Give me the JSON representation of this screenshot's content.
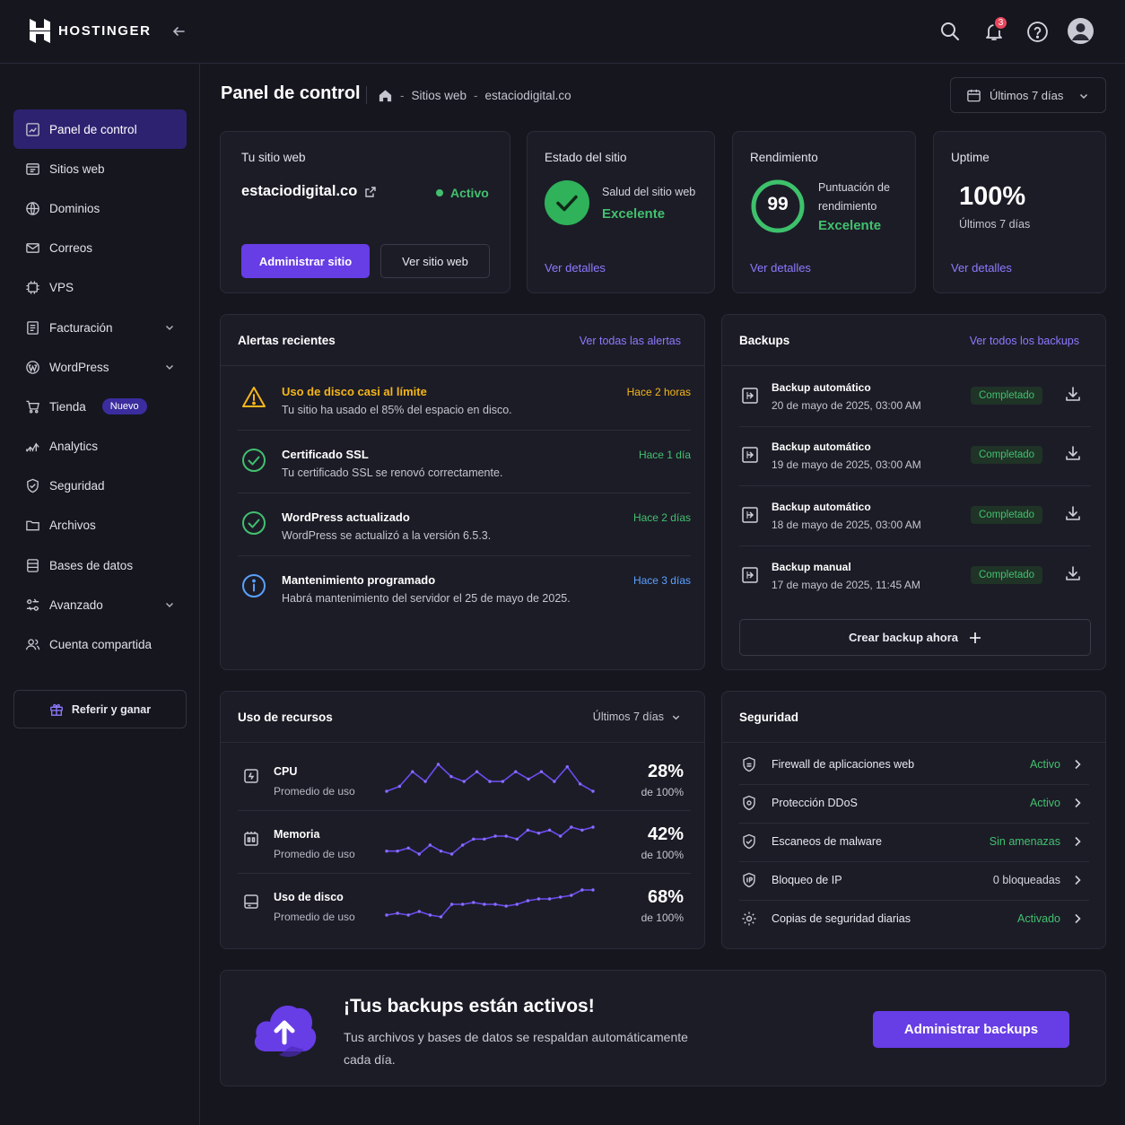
{
  "brand": {
    "name": "HOSTINGER"
  },
  "header": {
    "notification_count": "3"
  },
  "sidebar": {
    "items": [
      {
        "label": "Panel de control"
      },
      {
        "label": "Sitios web"
      },
      {
        "label": "Dominios"
      },
      {
        "label": "Correos"
      },
      {
        "label": "VPS"
      },
      {
        "label": "Facturación"
      },
      {
        "label": "WordPress"
      },
      {
        "label": "Tienda",
        "badge": "Nuevo"
      },
      {
        "label": "Analytics"
      },
      {
        "label": "Seguridad"
      },
      {
        "label": "Archivos"
      },
      {
        "label": "Bases de datos"
      },
      {
        "label": "Avanzado"
      },
      {
        "label": "Cuenta compartida"
      }
    ],
    "refer_label": "Referir y ganar"
  },
  "page": {
    "title": "Panel de control",
    "breadcrumb": [
      "Sitios web",
      "estaciodigital.co"
    ],
    "date_range": "Últimos 7 días"
  },
  "site_card": {
    "label": "Tu sitio web",
    "domain": "estaciodigital.co",
    "status": "Activo",
    "manage_label": "Administrar sitio",
    "view_label": "Ver sitio web"
  },
  "status_card": {
    "label": "Estado del sitio",
    "health_label": "Salud del sitio web",
    "health_value": "Excelente",
    "details": "Ver detalles"
  },
  "performance_card": {
    "label": "Rendimiento",
    "score": "99",
    "score_fraction": 0.99,
    "score_label_1": "Puntuación de",
    "score_label_2": "rendimiento",
    "score_value": "Excelente",
    "details": "Ver detalles"
  },
  "uptime_card": {
    "label": "Uptime",
    "value": "100%",
    "period": "Últimos 7 días",
    "details": "Ver detalles"
  },
  "alerts": {
    "title": "Alertas recientes",
    "link": "Ver todas las alertas",
    "items": [
      {
        "title": "Uso de disco casi al límite",
        "desc": "Tu sitio ha usado el 85% del espacio en disco.",
        "time": "Hace 2 horas",
        "kind": "warning"
      },
      {
        "title": "Certificado SSL",
        "desc": "Tu certificado SSL se renovó correctamente.",
        "time": "Hace 1 día",
        "kind": "success"
      },
      {
        "title": "WordPress actualizado",
        "desc": "WordPress se actualizó a la versión 6.5.3.",
        "time": "Hace 2 días",
        "kind": "success"
      },
      {
        "title": "Mantenimiento programado",
        "desc": "Habrá mantenimiento del servidor el 25 de mayo de 2025.",
        "time": "Hace 3 días",
        "kind": "info"
      }
    ]
  },
  "backups": {
    "title": "Backups",
    "link": "Ver todos los backups",
    "items": [
      {
        "title": "Backup automático",
        "date": "20 de mayo de 2025, 03:00 AM",
        "status": "Completado"
      },
      {
        "title": "Backup automático",
        "date": "19 de mayo de 2025, 03:00 AM",
        "status": "Completado"
      },
      {
        "title": "Backup automático",
        "date": "18 de mayo de 2025, 03:00 AM",
        "status": "Completado"
      },
      {
        "title": "Backup manual",
        "date": "17 de mayo de 2025, 11:45 AM",
        "status": "Completado"
      }
    ],
    "create_label": "Crear backup ahora"
  },
  "resources": {
    "title": "Uso de recursos",
    "period": "Últimos 7 días",
    "items": [
      {
        "title": "CPU",
        "sub": "Promedio de uso",
        "value": "28%",
        "of": "de 100%",
        "trend": [
          20,
          22,
          28,
          24,
          31,
          26,
          24,
          28,
          24,
          24,
          28,
          25,
          28,
          24,
          30,
          23,
          20
        ]
      },
      {
        "title": "Memoria",
        "sub": "Promedio de uso",
        "value": "42%",
        "of": "de 100%",
        "trend": [
          36,
          36,
          37,
          35,
          38,
          36,
          35,
          38,
          40,
          40,
          41,
          41,
          40,
          43,
          42,
          43,
          41,
          44,
          43,
          44
        ]
      },
      {
        "title": "Uso de disco",
        "sub": "Promedio de uso",
        "value": "68%",
        "of": "de 100%",
        "trend": [
          56,
          57,
          56,
          58,
          56,
          55,
          62,
          62,
          63,
          62,
          62,
          61,
          62,
          64,
          65,
          65,
          66,
          67,
          70,
          70
        ]
      }
    ]
  },
  "security": {
    "title": "Seguridad",
    "items": [
      {
        "label": "Firewall de aplicaciones web",
        "value": "Activo",
        "color": "#42c06e"
      },
      {
        "label": "Protección DDoS",
        "value": "Activo",
        "color": "#42c06e"
      },
      {
        "label": "Escaneos de malware",
        "value": "Sin amenazas",
        "color": "#42c06e"
      },
      {
        "label": "Bloqueo de IP",
        "value": "0 bloqueadas",
        "color": "#d6d6df"
      },
      {
        "label": "Copias de seguridad diarias",
        "value": "Activado",
        "color": "#42c06e"
      }
    ]
  },
  "banner": {
    "title": "¡Tus backups están activos!",
    "desc_line1": "Tus archivos y bases de datos se respaldan automáticamente",
    "desc_line2": "cada día.",
    "button": "Administrar backups"
  },
  "colors": {
    "accent": "#673de6",
    "link": "#8b7bff",
    "success": "#42c06e",
    "warning": "#f5b619",
    "info": "#5aa0ff"
  }
}
